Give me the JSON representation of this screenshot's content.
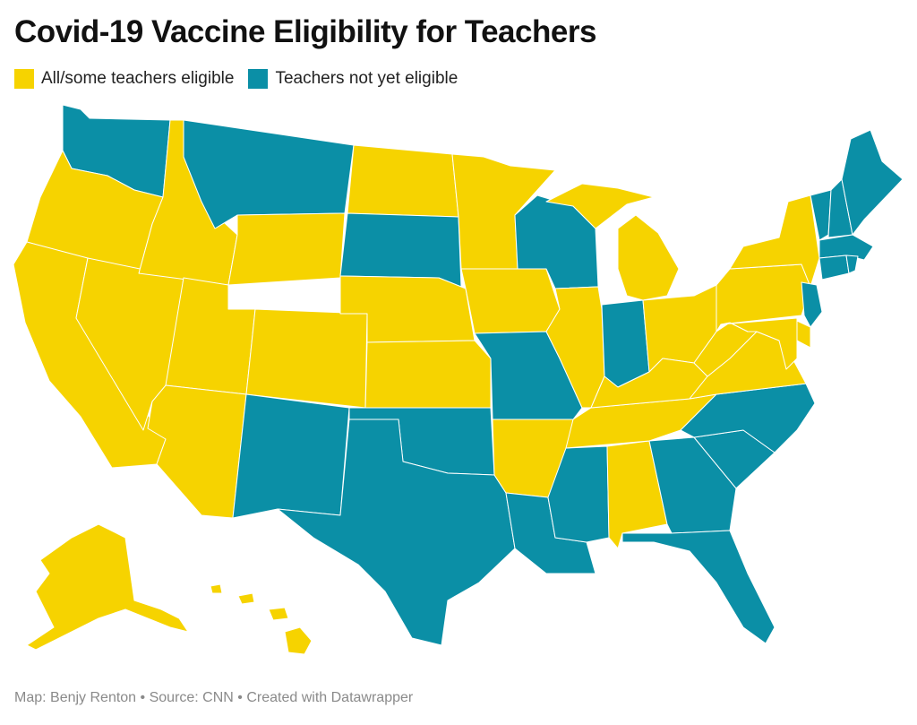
{
  "title": "Covid-19 Vaccine Eligibility for Teachers",
  "legend": {
    "eligible": {
      "label": "All/some teachers eligible",
      "color": "#f6d300"
    },
    "not_eligible": {
      "label": "Teachers not yet eligible",
      "color": "#0b8fa6"
    }
  },
  "footer": {
    "map_credit": "Map: Benjy Renton",
    "separator": "•",
    "source": "Source: CNN",
    "created": "Created with Datawrapper"
  },
  "states_eligible": [
    "WA-excluded",
    "OR",
    "CA",
    "NV",
    "ID",
    "UT",
    "AZ",
    "WY",
    "CO",
    "ND",
    "NE",
    "KS",
    "MN",
    "IA",
    "IL",
    "MI",
    "AR",
    "AL",
    "KY",
    "TN",
    "OH",
    "WV",
    "VA",
    "PA",
    "NY",
    "MD",
    "DE",
    "AK",
    "HI"
  ],
  "states_not_eligible": [
    "WA",
    "MT",
    "SD",
    "NM",
    "TX",
    "OK",
    "MO",
    "WI",
    "IN",
    "LA",
    "MS",
    "GA",
    "SC",
    "NC",
    "FL",
    "ME",
    "NH",
    "VT",
    "MA",
    "CT",
    "RI",
    "NJ"
  ]
}
